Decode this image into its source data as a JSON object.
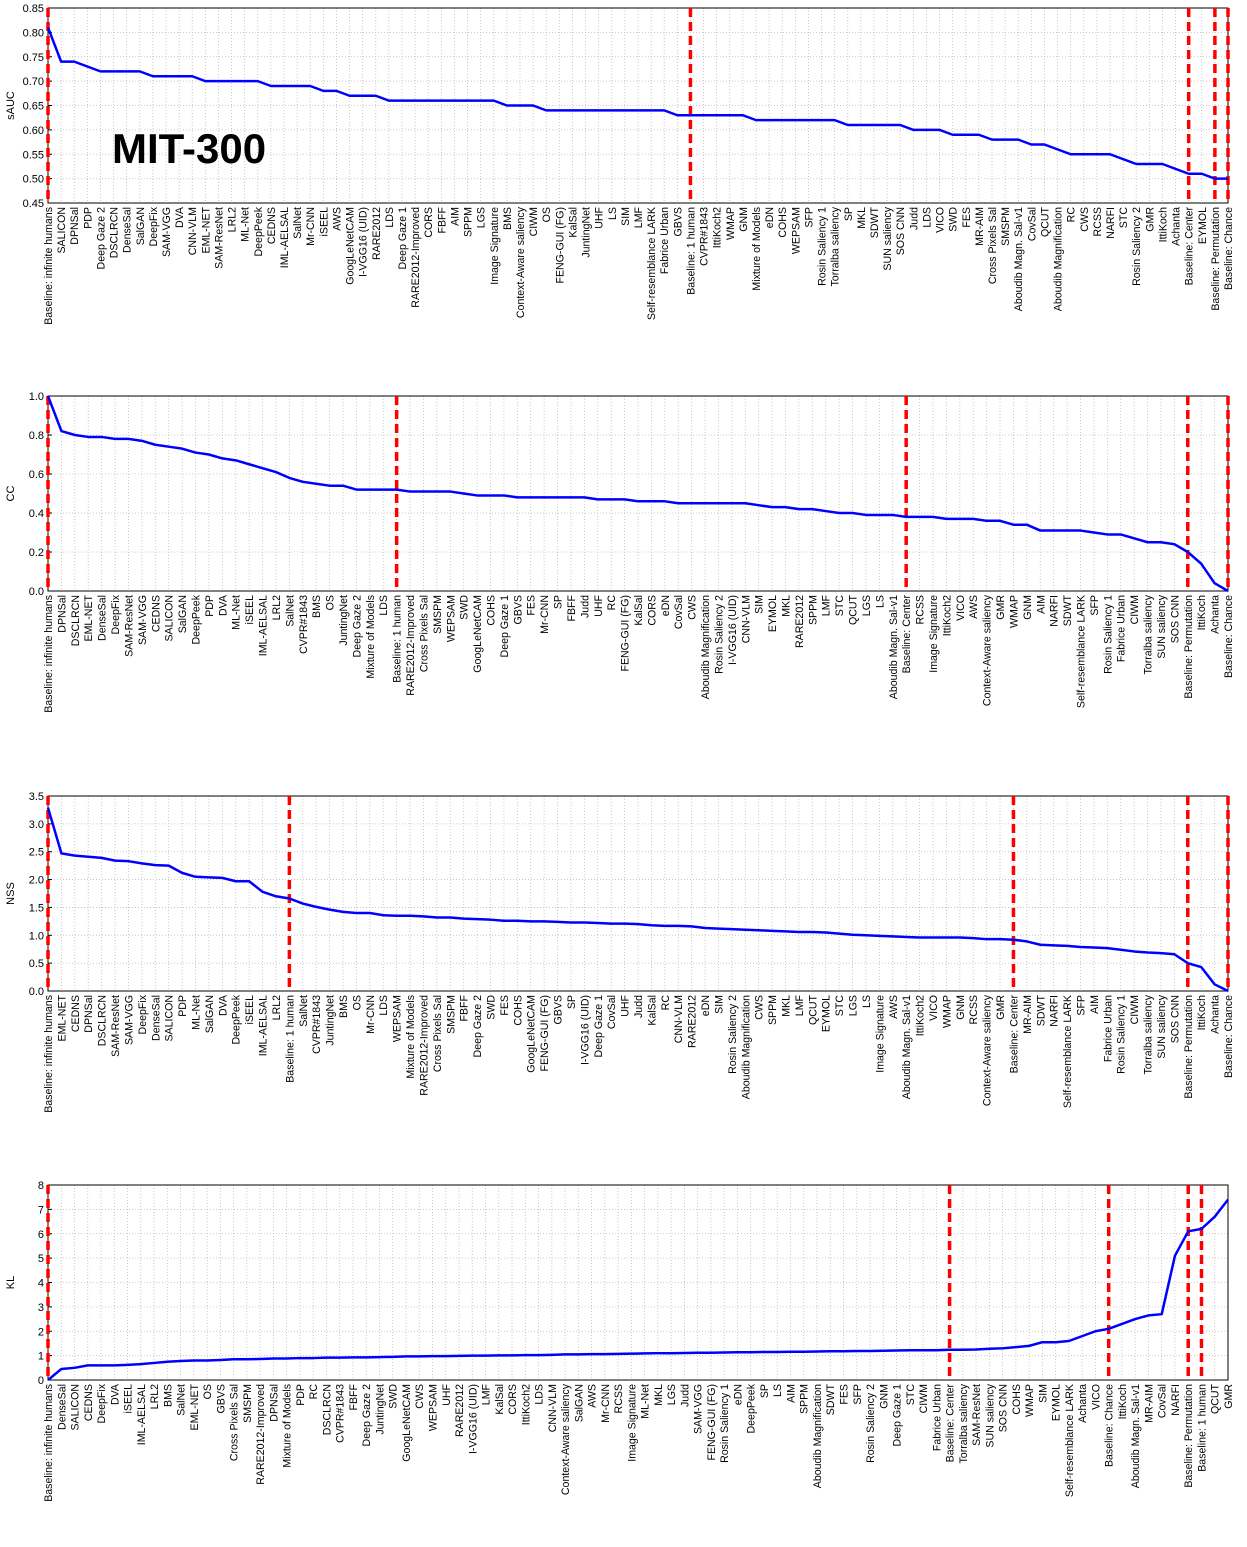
{
  "chart_data": [
    {
      "type": "line",
      "ylabel": "sAUC",
      "annotation": "MIT-300",
      "color": "#0000ff",
      "grid": true,
      "reference_lines": [
        0,
        49,
        87,
        89,
        90
      ],
      "reference_color": "#ff0000",
      "ylim": [
        0.45,
        0.85
      ],
      "yticks": [
        0.45,
        {
          "value": 0.5,
          "label": "0.50"
        },
        0.55,
        {
          "value": 0.6,
          "label": "0.60"
        },
        0.65,
        {
          "value": 0.7,
          "label": "0.70"
        },
        0.75,
        {
          "value": 0.8,
          "label": "0.80"
        },
        0.85
      ],
      "categories": [
        "Baseline: infinite humans",
        "SALICON",
        "DPNSal",
        "PDP",
        "Deep Gaze 2",
        "DSCLRCN",
        "DenseSal",
        "SalGAN",
        "DeepFix",
        "SAM-VGG",
        "DVA",
        "CNN-VLM",
        "EML-NET",
        "SAM-ResNet",
        "LRL2",
        "ML-Net",
        "DeepPeek",
        "CEDNS",
        "IML-AELSAL",
        "SalNet",
        "Mr-CNN",
        "iSEEL",
        "AWS",
        "GoogLeNetCAM",
        "I-VGG16 (UID)",
        "RARE2012",
        "LDS",
        "Deep Gaze 1",
        "RARE2012-Improved",
        "CORS",
        "FBFF",
        "AIM",
        "SPPM",
        "LGS",
        "Image Signature",
        "BMS",
        "Context-Aware saliency",
        "CIWM",
        "OS",
        "FENG-GUI (FG)",
        "KalSal",
        "JuntingNet",
        "UHF",
        "LS",
        "SIM",
        "LMF",
        "Self-resemblance LARK",
        "Fabrice Urban",
        "GBVS",
        "Baseline: 1 human",
        "CVPR#1843",
        "IttiKoch2",
        "WMAP",
        "GNM",
        "Mixture of Models",
        "eDN",
        "COHS",
        "WEPSAM",
        "SFP",
        "Rosin Saliency 1",
        "Torralba saliency",
        "SP",
        "MKL",
        "SDWT",
        "SUN saliency",
        "SOS CNN",
        "Judd",
        "LDS",
        "VICO",
        "SWD",
        "FES",
        "MR-AIM",
        "Cross Pixels Sal",
        "SMSPM",
        "Aboudib Magn. Sal-v1",
        "CovSal",
        "QCUT",
        "Aboudib Magnification",
        "RC",
        "CWS",
        "RCSS",
        "NARFI",
        "STC",
        "Rosin Saliency 2",
        "GMR",
        "IttiKoch",
        "Achanta",
        "Baseline: Center",
        "EYMOL",
        "Baseline: Permutation",
        "Baseline: Chance"
      ],
      "values": [
        0.81,
        0.74,
        0.74,
        0.73,
        0.72,
        0.72,
        0.72,
        0.72,
        0.71,
        0.71,
        0.71,
        0.71,
        0.7,
        0.7,
        0.7,
        0.7,
        0.7,
        0.69,
        0.69,
        0.69,
        0.69,
        0.68,
        0.68,
        0.67,
        0.67,
        0.67,
        0.66,
        0.66,
        0.66,
        0.66,
        0.66,
        0.66,
        0.66,
        0.66,
        0.66,
        0.65,
        0.65,
        0.65,
        0.64,
        0.64,
        0.64,
        0.64,
        0.64,
        0.64,
        0.64,
        0.64,
        0.64,
        0.64,
        0.63,
        0.63,
        0.63,
        0.63,
        0.63,
        0.63,
        0.62,
        0.62,
        0.62,
        0.62,
        0.62,
        0.62,
        0.62,
        0.61,
        0.61,
        0.61,
        0.61,
        0.61,
        0.6,
        0.6,
        0.6,
        0.59,
        0.59,
        0.59,
        0.58,
        0.58,
        0.58,
        0.57,
        0.57,
        0.56,
        0.55,
        0.55,
        0.55,
        0.55,
        0.54,
        0.53,
        0.53,
        0.53,
        0.52,
        0.51,
        0.51,
        0.5,
        0.5
      ]
    },
    {
      "type": "line",
      "ylabel": "CC",
      "color": "#0000ff",
      "grid": true,
      "reference_lines": [
        0,
        26,
        64,
        85,
        88
      ],
      "reference_color": "#ff0000",
      "ylim": [
        0,
        1
      ],
      "yticks": [
        {
          "value": 0,
          "label": "0.0"
        },
        0.2,
        0.4,
        0.6,
        0.8,
        {
          "value": 1,
          "label": "1.0"
        }
      ],
      "categories": [
        "Baseline: infinite humans",
        "DPNSal",
        "DSCLRCN",
        "EML-NET",
        "DenseSal",
        "DeepFix",
        "SAM-ResNet",
        "SAM-VGG",
        "CEDNS",
        "SALICON",
        "SalGAN",
        "DeepPeek",
        "PDP",
        "DVA",
        "ML-Net",
        "iSEEL",
        "IML-AELSAL",
        "LRL2",
        "SalNet",
        "CVPR#1843",
        "BMS",
        "OS",
        "JuntingNet",
        "Deep Gaze 2",
        "Mixture of Models",
        "LDS",
        "Baseline: 1 human",
        "RARE2012-Improved",
        "Cross Pixels Sal",
        "SMSPM",
        "WEPSAM",
        "SWD",
        "GoogLeNetCAM",
        "COHS",
        "Deep Gaze 1",
        "GBVS",
        "FES",
        "Mr-CNN",
        "SP",
        "FBFF",
        "Judd",
        "UHF",
        "RC",
        "FENG-GUI (FG)",
        "KalSal",
        "CORS",
        "eDN",
        "CovSal",
        "CWS",
        "Aboudib Magnification",
        "Rosin Saliency 2",
        "I-VGG16 (UID)",
        "CNN-VLM",
        "SIM",
        "EYMOL",
        "MKL",
        "RARE2012",
        "SPPM",
        "LMF",
        "STC",
        "QCUT",
        "LGS",
        "LS",
        "Aboudib Magn. Sal-v1",
        "Baseline: Center",
        "RCSS",
        "Image Signature",
        "IttiKoch2",
        "VICO",
        "AWS",
        "Context-Aware saliency",
        "GMR",
        "WMAP",
        "GNM",
        "AIM",
        "NARFI",
        "SDWT",
        "Self-resemblance LARK",
        "SFP",
        "Rosin Saliency 1",
        "Fabrice Urban",
        "CIWM",
        "Torralba saliency",
        "SUN saliency",
        "SOS CNN",
        "Baseline: Permutation",
        "IttiKoch",
        "Achanta",
        "Baseline: Chance"
      ],
      "values": [
        1.0,
        0.82,
        0.8,
        0.79,
        0.79,
        0.78,
        0.78,
        0.77,
        0.75,
        0.74,
        0.73,
        0.71,
        0.7,
        0.68,
        0.67,
        0.65,
        0.63,
        0.61,
        0.58,
        0.56,
        0.55,
        0.54,
        0.54,
        0.52,
        0.52,
        0.52,
        0.52,
        0.51,
        0.51,
        0.51,
        0.51,
        0.5,
        0.49,
        0.49,
        0.49,
        0.48,
        0.48,
        0.48,
        0.48,
        0.48,
        0.48,
        0.47,
        0.47,
        0.47,
        0.46,
        0.46,
        0.46,
        0.45,
        0.45,
        0.45,
        0.45,
        0.45,
        0.45,
        0.44,
        0.43,
        0.43,
        0.42,
        0.42,
        0.41,
        0.4,
        0.4,
        0.39,
        0.39,
        0.39,
        0.38,
        0.38,
        0.38,
        0.37,
        0.37,
        0.37,
        0.36,
        0.36,
        0.34,
        0.34,
        0.31,
        0.31,
        0.31,
        0.31,
        0.3,
        0.29,
        0.29,
        0.27,
        0.25,
        0.25,
        0.24,
        0.2,
        0.14,
        0.04,
        0.0
      ]
    },
    {
      "type": "line",
      "ylabel": "NSS",
      "color": "#0000ff",
      "grid": true,
      "reference_lines": [
        0,
        18,
        72,
        85,
        88
      ],
      "reference_color": "#ff0000",
      "ylim": [
        0,
        3.5
      ],
      "yticks": [
        {
          "value": 0,
          "label": "0.0"
        },
        0.5,
        {
          "value": 1,
          "label": "1.0"
        },
        1.5,
        {
          "value": 2,
          "label": "2.0"
        },
        2.5,
        {
          "value": 3,
          "label": "3.0"
        },
        3.5
      ],
      "categories": [
        "Baseline: infinite humans",
        "EML-NET",
        "CEDNS",
        "DPNSal",
        "DSCLRCN",
        "SAM-ResNet",
        "SAM-VGG",
        "DeepFix",
        "DenseSal",
        "SALICON",
        "PDP",
        "ML-Net",
        "SalGAN",
        "DVA",
        "DeepPeek",
        "iSEEL",
        "IML-AELSAL",
        "LRL2",
        "Baseline: 1 human",
        "SalNet",
        "CVPR#1843",
        "JuntingNet",
        "BMS",
        "OS",
        "Mr-CNN",
        "LDS",
        "WEPSAM",
        "Mixture of Models",
        "RARE2012-Improved",
        "Cross Pixels Sal",
        "SMSPM",
        "FBFF",
        "Deep Gaze 2",
        "SWD",
        "FES",
        "COHS",
        "GoogLeNetCAM",
        "FENG-GUI (FG)",
        "GBVS",
        "SP",
        "I-VGG16 (UID)",
        "Deep Gaze 1",
        "CovSal",
        "UHF",
        "Judd",
        "KalSal",
        "RC",
        "CNN-VLM",
        "RARE2012",
        "eDN",
        "SIM",
        "Rosin Saliency 2",
        "Aboudib Magnification",
        "CWS",
        "SPPM",
        "MKL",
        "LMF",
        "QCUT",
        "EYMOL",
        "STC",
        "LGS",
        "LS",
        "Image Signature",
        "AWS",
        "Aboudib Magn. Sal-v1",
        "IttiKoch2",
        "VICO",
        "WMAP",
        "GNM",
        "RCSS",
        "Context-Aware saliency",
        "GMR",
        "Baseline: Center",
        "MR-AIM",
        "SDWT",
        "NARFI",
        "Self-resemblance LARK",
        "SFP",
        "AIM",
        "Fabrice Urban",
        "Rosin Saliency 1",
        "CIWM",
        "Torralba saliency",
        "SUN saliency",
        "SOS CNN",
        "Baseline: Permutation",
        "IttiKoch",
        "Achanta",
        "Baseline: Chance"
      ],
      "values": [
        3.29,
        2.47,
        2.43,
        2.41,
        2.39,
        2.34,
        2.33,
        2.29,
        2.26,
        2.25,
        2.12,
        2.05,
        2.04,
        2.03,
        1.97,
        1.97,
        1.78,
        1.7,
        1.66,
        1.57,
        1.51,
        1.46,
        1.42,
        1.4,
        1.4,
        1.36,
        1.35,
        1.35,
        1.34,
        1.32,
        1.32,
        1.3,
        1.29,
        1.28,
        1.26,
        1.26,
        1.25,
        1.25,
        1.24,
        1.23,
        1.23,
        1.22,
        1.21,
        1.21,
        1.2,
        1.18,
        1.17,
        1.17,
        1.16,
        1.13,
        1.12,
        1.11,
        1.1,
        1.09,
        1.08,
        1.07,
        1.06,
        1.06,
        1.05,
        1.03,
        1.01,
        1.0,
        0.99,
        0.98,
        0.97,
        0.96,
        0.96,
        0.96,
        0.96,
        0.95,
        0.93,
        0.93,
        0.92,
        0.89,
        0.83,
        0.82,
        0.81,
        0.79,
        0.78,
        0.77,
        0.74,
        0.71,
        0.69,
        0.68,
        0.66,
        0.5,
        0.43,
        0.12,
        0.0
      ]
    },
    {
      "type": "line",
      "ylabel": "KL",
      "color": "#0000ff",
      "grid": true,
      "reference_lines": [
        0,
        68,
        80,
        86,
        87
      ],
      "reference_color": "#ff0000",
      "ylim": [
        0,
        8
      ],
      "yticks": [
        0,
        1,
        2,
        3,
        4,
        5,
        6,
        7,
        8
      ],
      "categories": [
        "Baseline: infinite humans",
        "DenseSal",
        "SALICON",
        "CEDNS",
        "DeepFix",
        "DVA",
        "iSEEL",
        "IML-AELSAL",
        "LRL2",
        "BMS",
        "SalNet",
        "EML-NET",
        "OS",
        "GBVS",
        "Cross Pixels Sal",
        "SMSPM",
        "RARE2012-Improved",
        "DPNSal",
        "Mixture of Models",
        "PDP",
        "RC",
        "DSCLRCN",
        "CVPR#1843",
        "FBFF",
        "Deep Gaze 2",
        "JuntingNet",
        "SWD",
        "GoogLeNetCAM",
        "CWS",
        "WEPSAM",
        "UHF",
        "RARE2012",
        "I-VGG16 (UID)",
        "LMF",
        "KalSal",
        "CORS",
        "IttiKoch2",
        "LDS",
        "CNN-VLM",
        "Context-Aware saliency",
        "SalGAN",
        "AWS",
        "Mr-CNN",
        "RCSS",
        "Image Signature",
        "ML-Net",
        "MKL",
        "LGS",
        "Judd",
        "SAM-VGG",
        "FENG-GUI (FG)",
        "Rosin Saliency 1",
        "eDN",
        "DeepPeek",
        "SP",
        "LS",
        "AIM",
        "SPPM",
        "Aboudib Magnification",
        "SDWT",
        "FES",
        "SFP",
        "Rosin Saliency 2",
        "GNM",
        "Deep Gaze 1",
        "STC",
        "CIWM",
        "Fabrice Urban",
        "Baseline: Center",
        "Torralba saliency",
        "SAM-ResNet",
        "SUN saliency",
        "SOS CNN",
        "COHS",
        "WMAP",
        "SIM",
        "EYMOL",
        "Self-resemblance LARK",
        "Achanta",
        "VICO",
        "Baseline: Chance",
        "IttiKoch",
        "Aboudib Magn. Sal-v1",
        "MR-AIM",
        "CovSal",
        "NARFI",
        "Baseline: Permutation",
        "Baseline: 1 human",
        "QCUT",
        "GMR"
      ],
      "values": [
        0.0,
        0.45,
        0.5,
        0.6,
        0.6,
        0.6,
        0.62,
        0.65,
        0.7,
        0.75,
        0.78,
        0.8,
        0.8,
        0.82,
        0.85,
        0.85,
        0.86,
        0.88,
        0.88,
        0.9,
        0.9,
        0.92,
        0.92,
        0.93,
        0.93,
        0.94,
        0.95,
        0.97,
        0.97,
        0.98,
        0.98,
        0.99,
        1.0,
        1.0,
        1.01,
        1.01,
        1.02,
        1.02,
        1.03,
        1.05,
        1.05,
        1.06,
        1.06,
        1.07,
        1.08,
        1.09,
        1.1,
        1.1,
        1.11,
        1.12,
        1.12,
        1.13,
        1.14,
        1.14,
        1.15,
        1.15,
        1.16,
        1.16,
        1.17,
        1.18,
        1.18,
        1.19,
        1.19,
        1.2,
        1.21,
        1.22,
        1.22,
        1.22,
        1.24,
        1.24,
        1.25,
        1.28,
        1.3,
        1.35,
        1.4,
        1.55,
        1.55,
        1.6,
        1.8,
        2.0,
        2.1,
        2.3,
        2.5,
        2.65,
        2.7,
        5.1,
        6.1,
        6.2,
        6.7,
        7.4
      ]
    }
  ]
}
